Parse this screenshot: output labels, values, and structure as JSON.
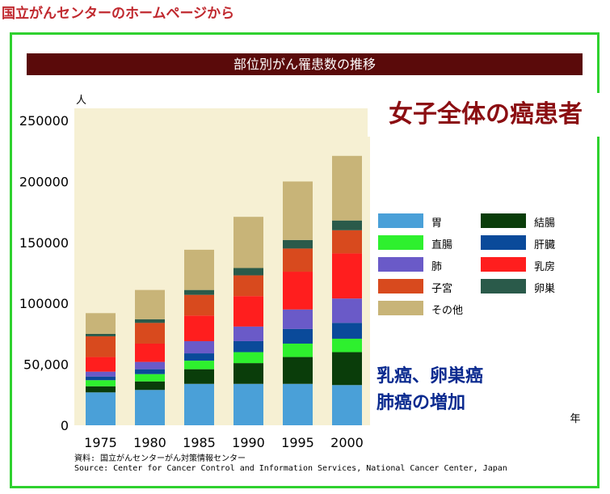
{
  "page_caption": "国立がんセンターのホームページから",
  "chart_data": {
    "type": "bar",
    "stacked": true,
    "title": "部位別がん罹患数の推移",
    "ylabel": "人",
    "xlabel": "年",
    "categories": [
      "1975",
      "1980",
      "1985",
      "1990",
      "1995",
      "2000"
    ],
    "ylim": [
      0,
      260000
    ],
    "yticks": [
      0,
      50000,
      100000,
      150000,
      200000,
      250000
    ],
    "ytick_labels": [
      "0",
      "50,000",
      "100000",
      "150000",
      "200000",
      "250000"
    ],
    "grid": false,
    "legend_position": "right",
    "series": [
      {
        "name": "胃",
        "color": "#4aa0d8",
        "values": [
          27000,
          29000,
          34000,
          34000,
          34000,
          33000
        ]
      },
      {
        "name": "結腸",
        "color": "#0a3d0a",
        "values": [
          5000,
          7000,
          12000,
          17000,
          22000,
          27000
        ]
      },
      {
        "name": "直腸",
        "color": "#2ef02e",
        "values": [
          5000,
          6000,
          7000,
          9000,
          11000,
          11000
        ]
      },
      {
        "name": "肝臓",
        "color": "#0a4a9a",
        "values": [
          3000,
          4000,
          6000,
          9000,
          12000,
          13000
        ]
      },
      {
        "name": "肺",
        "color": "#6a5ac8",
        "values": [
          4000,
          6000,
          10000,
          12000,
          16000,
          20000
        ]
      },
      {
        "name": "乳房",
        "color": "#ff1e1e",
        "values": [
          12000,
          15000,
          21000,
          25000,
          31000,
          37000
        ]
      },
      {
        "name": "子宮",
        "color": "#d84a1e",
        "values": [
          17000,
          17000,
          17000,
          17000,
          19000,
          19000
        ]
      },
      {
        "name": "卵巣",
        "color": "#2a5a4a",
        "values": [
          2000,
          3000,
          4000,
          6000,
          7000,
          8000
        ]
      },
      {
        "name": "その他",
        "color": "#c8b478",
        "values": [
          17000,
          24000,
          33000,
          42000,
          48000,
          53000
        ]
      }
    ]
  },
  "legend_order": [
    "胃",
    "結腸",
    "直腸",
    "肝臓",
    "肺",
    "乳房",
    "子宮",
    "卵巣",
    "その他"
  ],
  "annotations": {
    "main": "女子全体の癌患者",
    "sub_line1": "乳癌、卵巣癌",
    "sub_line2": "肺癌の増加"
  },
  "source": {
    "line1": "資料: 国立がんセンターがん対策情報センター",
    "line2": "Source: Center for Cancer Control and Information Services, National Cancer Center, Japan"
  }
}
